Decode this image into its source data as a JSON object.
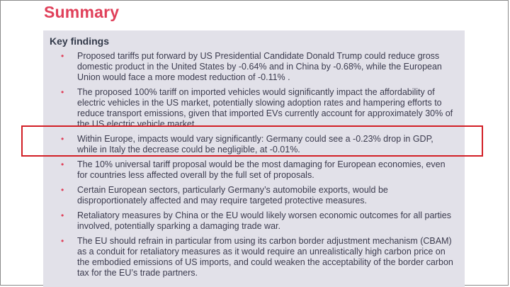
{
  "page": {
    "title": "Summary",
    "section_heading": "Key findings",
    "findings": [
      "Proposed tariffs put forward by US Presidential Candidate Donald Trump could reduce gross domestic product in the United States by -0.64% and in China by -0.68%, while the European Union would face a more modest reduction of -0.11% .",
      "The proposed 100% tariff on imported vehicles would significantly impact the affordability of electric vehicles in the US market, potentially slowing adoption rates and hampering efforts to reduce transport emissions, given that imported EVs currently account for approximately 30% of the US electric vehicle market.",
      "Within Europe, impacts would vary significantly: Germany could see a -0.23% drop in GDP, while in Italy the decrease could be negligible, at -0.01%.",
      "The 10% universal tariff proposal would be the most damaging for European economies, even for countries less affected overall by the full set of proposals.",
      "Certain European sectors, particularly Germany’s automobile exports, would be disproportionately affected and may require targeted protective measures.",
      "Retaliatory measures by China or the EU would likely worsen economic outcomes for all parties involved, potentially sparking a damaging trade war.",
      "The EU should refrain in particular from using its carbon border adjustment mechanism (CBAM) as a conduit for retaliatory measures as it would require an unrealistically high carbon price on the embodied emissions of US imports, and could weaken the acceptability of the border carbon tax for the EU’s trade partners."
    ],
    "bullet_char": "•"
  },
  "colors": {
    "accent": "#e0405a",
    "panel": "#e2e1e9",
    "highlight_border": "#d21f26"
  }
}
